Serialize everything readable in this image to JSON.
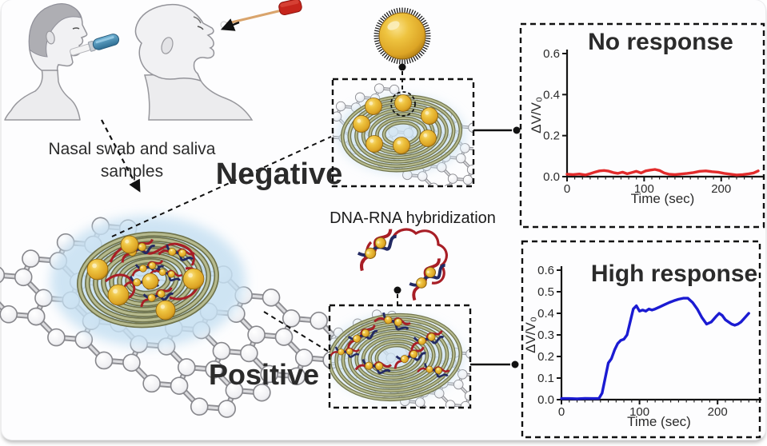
{
  "labels": {
    "sample_caption_line1": "Nasal swab and saliva",
    "sample_caption_line2": "samples",
    "negative": "Negative",
    "positive": "Positive",
    "hybridization": "DNA-RNA hybridization"
  },
  "colors": {
    "negative_label": "#2089cb",
    "positive_label": "#c41a20",
    "no_response_line": "#e22b2b",
    "high_response_line": "#1b1bd2",
    "gold": "#eec33f",
    "coil": "#6e724a",
    "halo": "#c6e0f2",
    "dna_red": "#a81e26",
    "dna_blue": "#232a63",
    "swab_cap": "#c6251c",
    "device_blue": "#3f7fa8"
  },
  "chart_data": [
    {
      "type": "line",
      "title": "No response",
      "xlabel": "Time (sec)",
      "ylabel": "ΔV/V₀",
      "xlim": [
        0,
        248
      ],
      "ylim": [
        0,
        0.6
      ],
      "xticks": [
        "0",
        "100",
        "200"
      ],
      "yticks": [
        "0.0",
        "0.2",
        "0.4",
        "0.6"
      ],
      "legend": "none",
      "grid": false,
      "line_color": "#e22b2b",
      "x": [
        0,
        8,
        16,
        24,
        30,
        36,
        42,
        48,
        54,
        60,
        66,
        72,
        78,
        84,
        90,
        96,
        102,
        108,
        114,
        120,
        126,
        132,
        140,
        148,
        156,
        164,
        172,
        180,
        188,
        196,
        204,
        212,
        220,
        228,
        236,
        242,
        248
      ],
      "y": [
        0.012,
        0.01,
        0.013,
        0.008,
        0.015,
        0.022,
        0.028,
        0.03,
        0.027,
        0.02,
        0.016,
        0.022,
        0.014,
        0.02,
        0.026,
        0.018,
        0.028,
        0.032,
        0.035,
        0.03,
        0.018,
        0.012,
        0.01,
        0.013,
        0.016,
        0.02,
        0.026,
        0.028,
        0.024,
        0.022,
        0.016,
        0.012,
        0.008,
        0.01,
        0.014,
        0.018,
        0.028
      ]
    },
    {
      "type": "line",
      "title": "High response",
      "xlabel": "Time (sec)",
      "ylabel": "ΔV/V₀",
      "xlim": [
        0,
        250
      ],
      "ylim": [
        0,
        0.6
      ],
      "xticks": [
        "0",
        "100",
        "200"
      ],
      "yticks": [
        "0.0",
        "0.1",
        "0.2",
        "0.3",
        "0.4",
        "0.5",
        "0.6"
      ],
      "legend": "none",
      "grid": false,
      "line_color": "#1b1bd2",
      "x": [
        0,
        10,
        20,
        30,
        40,
        48,
        52,
        56,
        60,
        64,
        68,
        72,
        76,
        80,
        84,
        88,
        92,
        96,
        100,
        104,
        108,
        112,
        116,
        120,
        126,
        132,
        138,
        144,
        150,
        156,
        162,
        168,
        174,
        180,
        186,
        192,
        198,
        202,
        206,
        210,
        214,
        218,
        222,
        226,
        230,
        235,
        240
      ],
      "y": [
        0.005,
        0.005,
        0.004,
        0.006,
        0.005,
        0.005,
        0.03,
        0.1,
        0.17,
        0.19,
        0.23,
        0.26,
        0.275,
        0.28,
        0.3,
        0.36,
        0.42,
        0.435,
        0.41,
        0.415,
        0.41,
        0.42,
        0.415,
        0.42,
        0.43,
        0.44,
        0.45,
        0.458,
        0.465,
        0.47,
        0.47,
        0.45,
        0.42,
        0.38,
        0.35,
        0.36,
        0.385,
        0.4,
        0.39,
        0.37,
        0.36,
        0.35,
        0.345,
        0.35,
        0.36,
        0.38,
        0.4
      ]
    }
  ]
}
